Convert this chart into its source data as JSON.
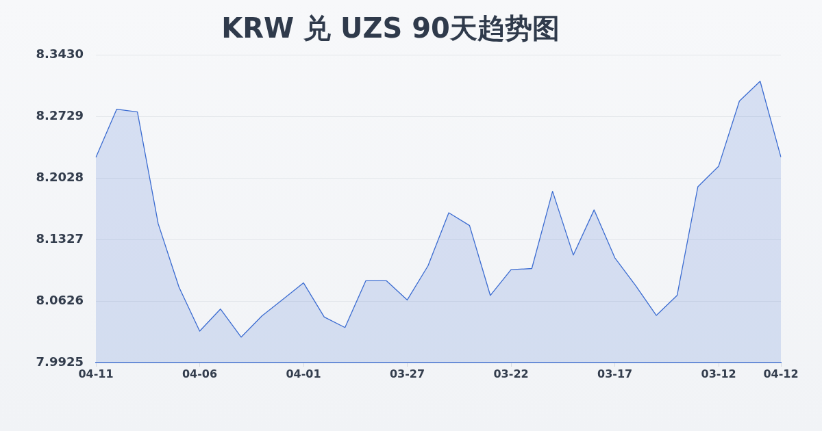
{
  "chart_data": {
    "type": "area",
    "title": "KRW 兑 UZS 90天趋势图",
    "categories": [
      "04-11",
      null,
      null,
      null,
      null,
      "04-06",
      null,
      null,
      null,
      null,
      "04-01",
      null,
      null,
      null,
      null,
      "03-27",
      null,
      null,
      null,
      null,
      "03-22",
      null,
      null,
      null,
      null,
      "03-17",
      null,
      null,
      null,
      null,
      "03-12",
      null,
      null,
      "04-12"
    ],
    "series": [
      {
        "color": "#3a6bd1",
        "values": [
          8.2262,
          8.2809,
          8.2778,
          8.1507,
          8.0786,
          8.0283,
          8.0535,
          8.0215,
          8.0457,
          8.0643,
          8.0833,
          8.0444,
          8.0324,
          8.0856,
          8.0856,
          8.0638,
          8.1027,
          8.1631,
          8.1486,
          8.069,
          8.0983,
          8.0996,
          8.1875,
          8.1149,
          8.1663,
          8.1118,
          8.0802,
          8.0462,
          8.069,
          8.1927,
          8.2161,
          8.2902,
          8.3128,
          8.2265
        ]
      }
    ],
    "ylim": [
      7.9925,
      8.343
    ],
    "yticks": [
      7.9925,
      8.0626,
      8.1327,
      8.2028,
      8.2729,
      {
        "value": 8.343,
        "label": "8.3430"
      }
    ],
    "grid": "y"
  }
}
